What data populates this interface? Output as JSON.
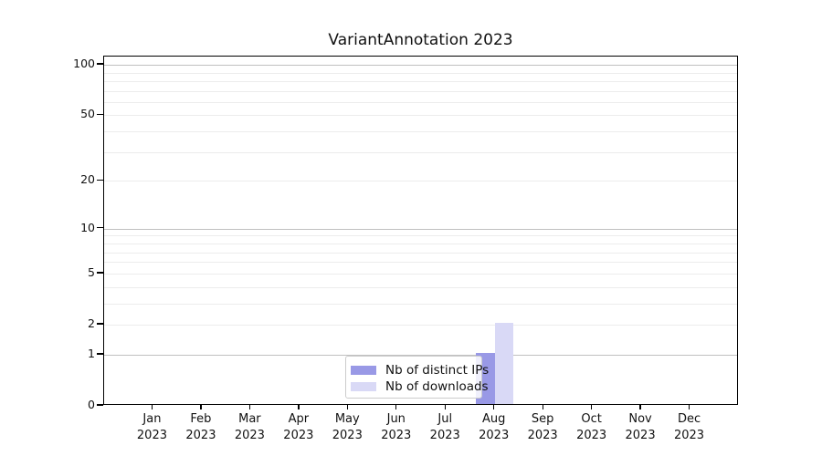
{
  "figure": {
    "background": "#ffffff",
    "title": "VariantAnnotation 2023"
  },
  "chart_data": {
    "type": "bar",
    "title": "VariantAnnotation 2023",
    "xlabel": "",
    "ylabel": "",
    "categories": [
      "Jan 2023",
      "Feb 2023",
      "Mar 2023",
      "Apr 2023",
      "May 2023",
      "Jun 2023",
      "Jul 2023",
      "Aug 2023",
      "Sep 2023",
      "Oct 2023",
      "Nov 2023",
      "Dec 2023"
    ],
    "series": [
      {
        "name": "Nb of distinct IPs",
        "color": "#9999e6",
        "values": [
          0,
          0,
          0,
          0,
          0,
          0,
          0,
          1,
          0,
          0,
          0,
          0
        ]
      },
      {
        "name": "Nb of downloads",
        "color": "#d9d9f6",
        "values": [
          0,
          0,
          0,
          0,
          0,
          0,
          0,
          2,
          0,
          0,
          0,
          0
        ]
      }
    ],
    "y_scale": "log1p",
    "ylim": [
      0,
      112
    ],
    "y_ticks": [
      0,
      1,
      2,
      5,
      10,
      20,
      50,
      100
    ],
    "y_major_gridlines": [
      1,
      10,
      100
    ],
    "y_minor_gridlines": [
      2,
      3,
      4,
      5,
      6,
      7,
      8,
      9,
      20,
      30,
      40,
      50,
      60,
      70,
      80,
      90
    ],
    "grid": "horizontal",
    "legend_position": "inside-bottom-center",
    "annotations": []
  }
}
